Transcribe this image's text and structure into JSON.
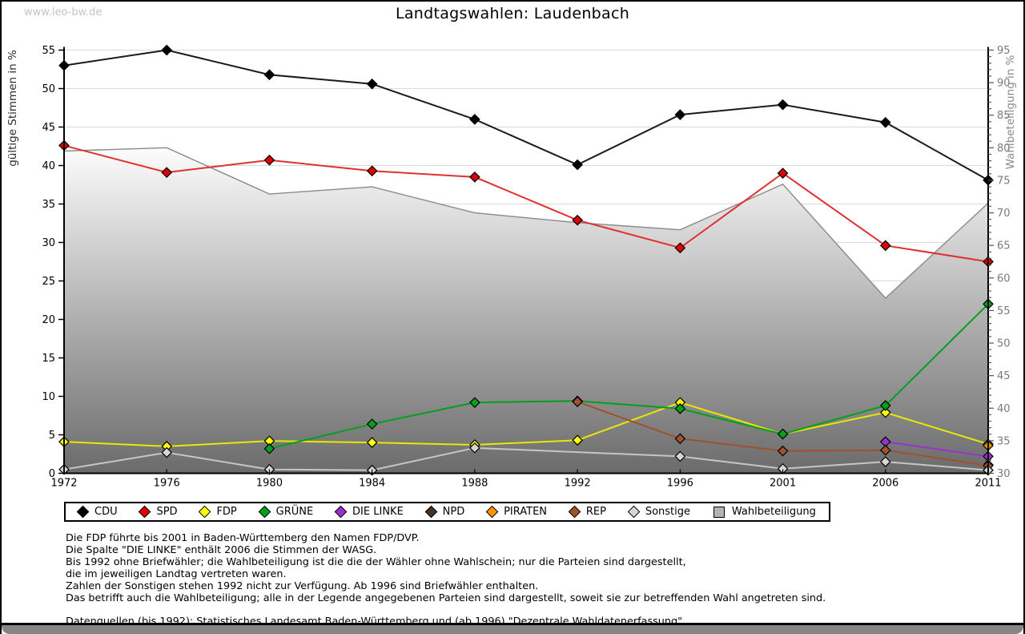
{
  "page": {
    "watermark": "www.leo-bw.de",
    "title": "Landtagswahlen: Laudenbach"
  },
  "chart_data": {
    "type": "line",
    "title": "Landtagswahlen: Laudenbach",
    "x": [
      1972,
      1976,
      1980,
      1984,
      1988,
      1992,
      1996,
      2001,
      2006,
      2011
    ],
    "y_left": {
      "label": "gültige Stimmen in %",
      "min": 0,
      "max": 55,
      "tick_step": 5
    },
    "y_right": {
      "label": "Wahlbeteiligung in %",
      "min": 30,
      "max": 95,
      "tick_step": 5,
      "minor_step": 1
    },
    "grid": "horizontal",
    "legend_position": "bottom",
    "series": [
      {
        "name": "CDU",
        "color": "#000000",
        "line_color": "#1a1a1a",
        "values": [
          53.0,
          55.0,
          51.8,
          50.6,
          46.0,
          40.1,
          46.6,
          47.9,
          45.6,
          38.1
        ]
      },
      {
        "name": "SPD",
        "color": "#dd0000",
        "line_color": "#e03030",
        "values": [
          42.6,
          39.1,
          40.7,
          39.3,
          38.5,
          32.9,
          29.3,
          39.0,
          29.6,
          27.5
        ]
      },
      {
        "name": "FDP",
        "color": "#ffff00",
        "line_color": "#e8e800",
        "values": [
          4.1,
          3.5,
          4.2,
          4.0,
          3.7,
          4.3,
          9.2,
          5.1,
          7.9,
          3.8
        ]
      },
      {
        "name": "GRÜNE",
        "color": "#00a01e",
        "line_color": "#00a01e",
        "values": [
          null,
          null,
          3.2,
          6.4,
          9.2,
          9.4,
          8.4,
          5.1,
          8.8,
          22.0
        ]
      },
      {
        "name": "DIE LINKE",
        "color": "#9933cc",
        "line_color": "#9933cc",
        "values": [
          null,
          null,
          null,
          null,
          null,
          null,
          null,
          null,
          4.1,
          2.2
        ]
      },
      {
        "name": "NPD",
        "color": "#463223",
        "line_color": "#463223",
        "values": [
          null,
          null,
          null,
          null,
          null,
          null,
          null,
          null,
          null,
          1.1
        ]
      },
      {
        "name": "PIRATEN",
        "color": "#ff9200",
        "line_color": "#ff9200",
        "values": [
          null,
          null,
          null,
          null,
          null,
          null,
          null,
          null,
          null,
          3.6
        ]
      },
      {
        "name": "REP",
        "color": "#a0522d",
        "line_color": "#a0522d",
        "values": [
          null,
          null,
          null,
          null,
          null,
          9.3,
          4.5,
          2.9,
          3.0,
          1.0
        ]
      },
      {
        "name": "Sonstige",
        "color": "#d6d6d6",
        "line_color": "#c6c6c6",
        "values": [
          0.5,
          2.7,
          0.5,
          0.4,
          3.3,
          null,
          2.2,
          0.6,
          1.5,
          0.4
        ]
      }
    ],
    "turnout": {
      "name": "Wahlbeteiligung",
      "axis": "right",
      "values": [
        79.5,
        80.0,
        72.9,
        74.0,
        70.0,
        68.5,
        67.4,
        74.4,
        56.9,
        71.5
      ],
      "outline_color": "#8a8a8a",
      "fill_top": "#fcfcfc",
      "fill_bottom": "#6b6b6b",
      "legend_fill": "#b3b3b3"
    }
  },
  "footnotes": {
    "lines": [
      "Die FDP führte bis 2001 in Baden-Württemberg den Namen FDP/DVP.",
      "Die Spalte \"DIE LINKE\" enthält 2006 die Stimmen der WASG.",
      "Bis 1992 ohne Briefwähler; die Wahlbeteiligung ist die die der Wähler ohne Wahlschein; nur die Parteien sind dargestellt,",
      "die im jeweiligen Landtag vertreten waren.",
      "Zahlen der Sonstigen stehen 1992 nicht zur Verfügung. Ab 1996 sind Briefwähler enthalten.",
      "Das betrifft auch die Wahlbeteiligung; alle in der Legende angegebenen Parteien sind dargestellt, soweit sie zur betreffenden Wahl angetreten sind."
    ],
    "source": "Datenquellen (bis 1992): Statistisches Landesamt Baden-Württemberg und (ab 1996) \"Dezentrale Wahldatenerfassung\"."
  }
}
